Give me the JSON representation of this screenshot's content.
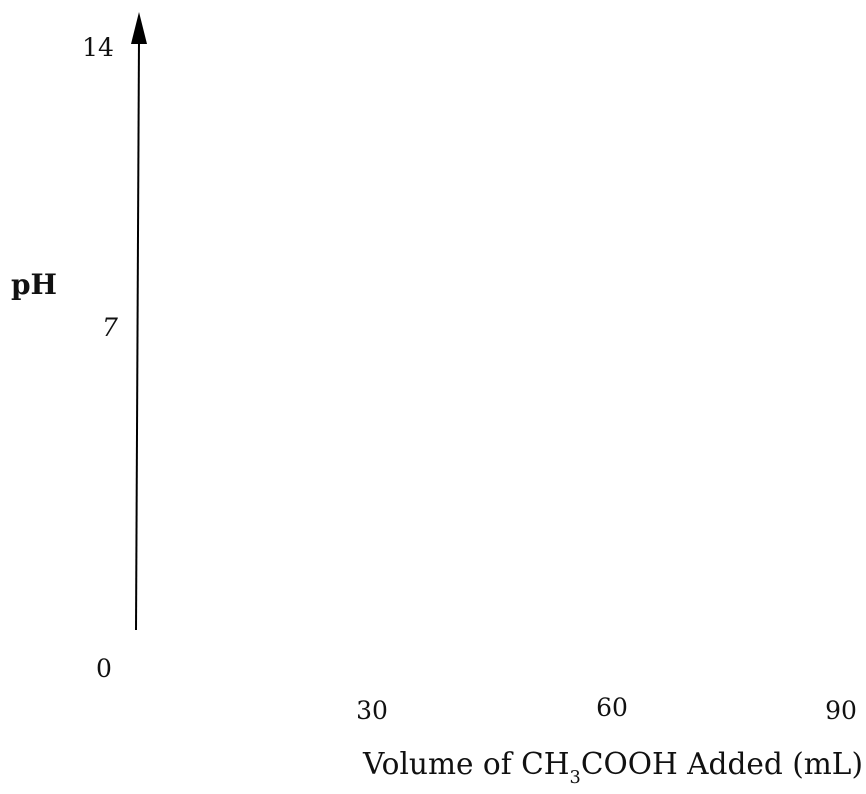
{
  "chart_data": {
    "type": "line",
    "title": "",
    "xlabel_parts": {
      "pre": "Volume of CH",
      "sub": "3",
      "post": "COOH Added (mL)"
    },
    "ylabel": "pH",
    "x_ticks": [
      "30",
      "60",
      "90"
    ],
    "y_ticks": [
      "0",
      "7",
      "14"
    ],
    "xlim": [
      0,
      90
    ],
    "ylim": [
      0,
      14
    ],
    "series": [],
    "grid": false
  }
}
